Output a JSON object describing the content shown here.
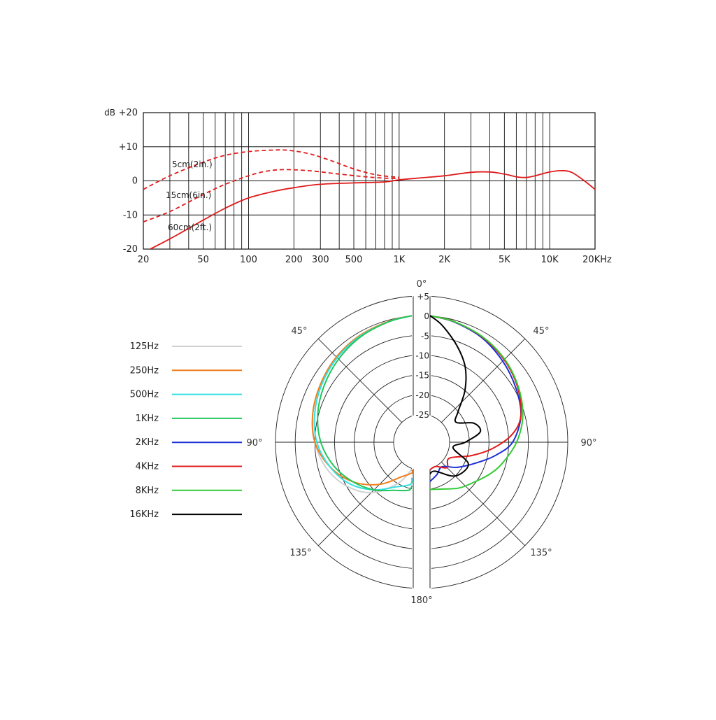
{
  "chart_data": [
    {
      "type": "line",
      "title": "",
      "xlabel": "",
      "ylabel": "",
      "unit_label": "dB",
      "x_scale": "log",
      "xlim": [
        20,
        20000
      ],
      "ylim": [
        -20,
        20
      ],
      "grid": true,
      "y_ticks": [
        {
          "value": 20,
          "label": "+20"
        },
        {
          "value": 10,
          "label": "+10"
        },
        {
          "value": 0,
          "label": "0"
        },
        {
          "value": -10,
          "label": "-10"
        },
        {
          "value": -20,
          "label": "-20"
        }
      ],
      "x_ticks": [
        {
          "value": 20,
          "label": "20"
        },
        {
          "value": 50,
          "label": "50"
        },
        {
          "value": 100,
          "label": "100"
        },
        {
          "value": 200,
          "label": "200"
        },
        {
          "value": 300,
          "label": "300"
        },
        {
          "value": 500,
          "label": "500"
        },
        {
          "value": 1000,
          "label": "1K"
        },
        {
          "value": 2000,
          "label": "2K"
        },
        {
          "value": 5000,
          "label": "5K"
        },
        {
          "value": 10000,
          "label": "10K"
        },
        {
          "value": 20000,
          "label": "20KHz"
        }
      ],
      "series": [
        {
          "name": "5cm(2in.)",
          "style": "dashed",
          "color": "#e01b1b",
          "x": [
            20,
            30,
            50,
            70,
            100,
            140,
            180,
            250,
            350,
            500,
            700,
            1000
          ],
          "y": [
            -2.5,
            1.5,
            5.5,
            7.5,
            8.6,
            9,
            9,
            8,
            6,
            3.5,
            1.8,
            1
          ]
        },
        {
          "name": "15cm(6in.)",
          "style": "dashed",
          "color": "#e01b1b",
          "x": [
            20,
            30,
            50,
            70,
            100,
            130,
            170,
            250,
            400,
            600,
            800,
            1000
          ],
          "y": [
            -12,
            -9,
            -4,
            -1,
            1.5,
            2.8,
            3.3,
            3,
            2,
            1.2,
            0.8,
            0.7
          ]
        },
        {
          "name": "60cm(2ft.)",
          "style": "solid",
          "color": "#e01b1b",
          "x": [
            20,
            30,
            50,
            70,
            100,
            150,
            200,
            300,
            500,
            800,
            1000,
            1500,
            2000,
            3000,
            4000,
            5000,
            6000,
            7000,
            8000,
            10000,
            12000,
            14000,
            17000,
            20000
          ],
          "y": [
            -21,
            -17,
            -11.5,
            -8,
            -5,
            -3,
            -2,
            -1,
            -0.6,
            -0.3,
            0.3,
            1,
            1.5,
            2.5,
            2.6,
            2,
            1.2,
            1,
            1.5,
            2.6,
            3,
            2.5,
            0,
            -2.5
          ]
        }
      ]
    },
    {
      "type": "polar",
      "title": "",
      "r_ticks": [
        "+5",
        "0",
        "-5",
        "-10",
        "-15",
        "-20",
        "-25"
      ],
      "r_values": [
        5,
        0,
        -5,
        -10,
        -15,
        -20,
        -25
      ],
      "angle_labels": [
        "0°",
        "45°",
        "45°",
        "90°",
        "90°",
        "135°",
        "135°",
        "180°"
      ],
      "legend": [
        {
          "name": "125Hz",
          "color": "#d0d0d0"
        },
        {
          "name": "250Hz",
          "color": "#f07f1e"
        },
        {
          "name": "500Hz",
          "color": "#33e0e0"
        },
        {
          "name": "1KHz",
          "color": "#22c55a"
        },
        {
          "name": "2KHz",
          "color": "#1c2fd6"
        },
        {
          "name": "4KHz",
          "color": "#e01b1b"
        },
        {
          "name": "8KHz",
          "color": "#33cc33"
        },
        {
          "name": "16KHz",
          "color": "#000000"
        }
      ],
      "series": [
        {
          "name": "125Hz",
          "side": "left",
          "angles": [
            0,
            15,
            30,
            45,
            60,
            75,
            90,
            105,
            120,
            135,
            150,
            165
          ],
          "db": [
            0,
            -0.3,
            -0.8,
            -1.5,
            -2.5,
            -3.5,
            -5,
            -7,
            -10,
            -14,
            -20,
            -25
          ]
        },
        {
          "name": "250Hz",
          "side": "left",
          "angles": [
            0,
            15,
            30,
            45,
            60,
            75,
            90,
            105,
            120,
            135,
            150,
            165,
            172
          ],
          "db": [
            0,
            -0.3,
            -0.8,
            -1.5,
            -2.5,
            -3.5,
            -5,
            -8,
            -12,
            -17,
            -22,
            -24,
            -25
          ]
        },
        {
          "name": "500Hz",
          "side": "left",
          "angles": [
            0,
            15,
            30,
            45,
            60,
            75,
            90,
            105,
            120,
            135,
            150,
            165,
            172
          ],
          "db": [
            0,
            -0.4,
            -1,
            -1.8,
            -2.8,
            -4,
            -5.5,
            -8,
            -11,
            -15,
            -19,
            -21,
            -23
          ]
        },
        {
          "name": "1KHz",
          "side": "left",
          "angles": [
            0,
            15,
            30,
            45,
            60,
            75,
            90,
            105,
            120,
            135,
            150,
            165,
            172
          ],
          "db": [
            0,
            -0.4,
            -1.2,
            -2.3,
            -3.5,
            -4.8,
            -6.5,
            -9,
            -12,
            -15,
            -18,
            -19.5,
            -21
          ]
        },
        {
          "name": "2KHz",
          "side": "right",
          "angles": [
            0,
            15,
            30,
            45,
            60,
            75,
            90,
            100,
            110,
            125,
            140,
            155,
            170
          ],
          "db": [
            0,
            -0.5,
            -1.5,
            -3,
            -4.5,
            -6,
            -9,
            -13,
            -17,
            -21,
            -24,
            -23,
            -22
          ]
        },
        {
          "name": "4KHz",
          "side": "right",
          "angles": [
            0,
            15,
            30,
            45,
            60,
            75,
            85,
            95,
            105,
            120,
            135,
            150,
            170
          ],
          "db": [
            0,
            -0.4,
            -1.3,
            -2.5,
            -4,
            -6,
            -9,
            -14,
            -19,
            -24,
            -23,
            -25,
            -25
          ]
        },
        {
          "name": "8KHz",
          "side": "right",
          "angles": [
            0,
            15,
            30,
            45,
            60,
            75,
            90,
            105,
            115,
            125,
            140,
            155,
            172
          ],
          "db": [
            0,
            -0.4,
            -1.2,
            -2.3,
            -3.8,
            -5.5,
            -8,
            -11,
            -13,
            -15,
            -17,
            -19,
            -20
          ]
        },
        {
          "name": "16KHz",
          "side": "right",
          "angles": [
            0,
            10,
            20,
            30,
            40,
            50,
            60,
            70,
            80,
            90,
            100,
            115,
            135,
            155,
            172
          ],
          "db": [
            0,
            -2,
            -6,
            -10,
            -15,
            -20,
            -22,
            -18,
            -17,
            -21,
            -24,
            -19,
            -20,
            -24,
            -24
          ]
        }
      ]
    }
  ]
}
